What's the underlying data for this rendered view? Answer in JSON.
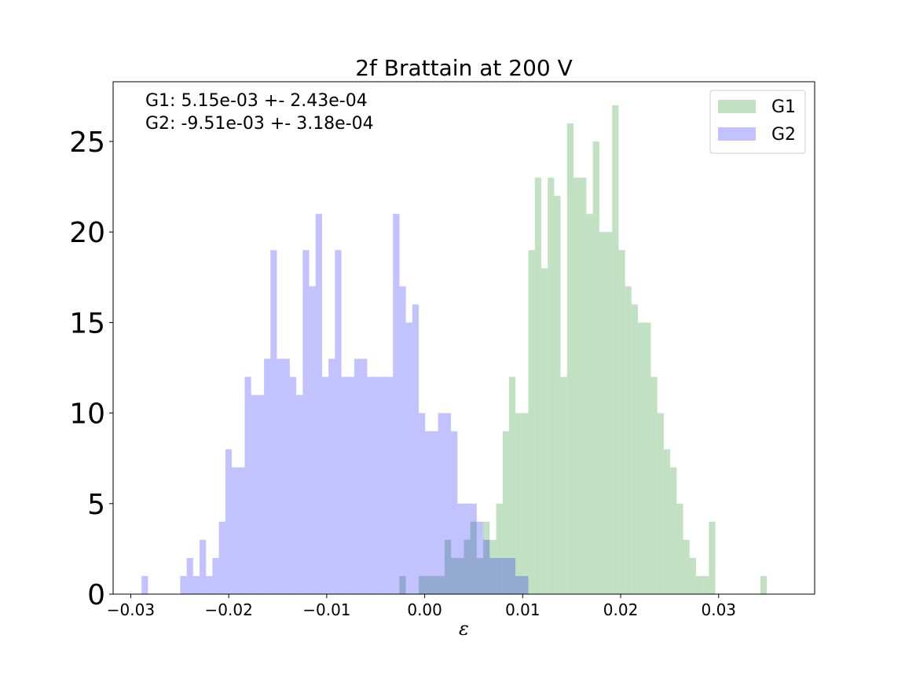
{
  "chart_data": {
    "type": "bar",
    "title": "2f Brattain at 200 V",
    "xlabel": "ε",
    "ylabel": "",
    "xlim": [
      -0.0318,
      0.0398
    ],
    "ylim": [
      0,
      28.3
    ],
    "xticks": [
      -0.03,
      -0.02,
      -0.01,
      0.0,
      0.01,
      0.02,
      0.03
    ],
    "xtick_labels": [
      "−0.03",
      "−0.02",
      "−0.01",
      "0.00",
      "0.01",
      "0.02",
      "0.03"
    ],
    "yticks": [
      0,
      5,
      10,
      15,
      20,
      25
    ],
    "ytick_labels": [
      "0",
      "5",
      "10",
      "15",
      "20",
      "25"
    ],
    "grid": false,
    "legend_position": "top-right",
    "annotations": [
      "G1: 5.15e-03 +- 2.43e-04",
      "G2: -9.51e-03 +- 3.18e-04"
    ],
    "bin_start": -0.0289,
    "bin_width": 0.000658,
    "series": [
      {
        "name": "G1",
        "color": "#008000",
        "alpha": 0.24,
        "values": [
          0,
          0,
          0,
          0,
          0,
          0,
          0,
          0,
          0,
          0,
          0,
          0,
          0,
          0,
          0,
          0,
          0,
          0,
          0,
          0,
          0,
          0,
          0,
          0,
          0,
          0,
          0,
          0,
          0,
          0,
          0,
          0,
          0,
          0,
          0,
          0,
          0,
          0,
          0,
          0,
          1,
          0,
          0,
          1,
          1,
          1,
          1,
          3,
          2,
          2,
          3,
          4,
          2,
          4,
          3,
          5,
          9,
          12,
          10,
          10,
          19,
          23,
          18,
          23,
          22,
          12,
          26,
          23,
          23,
          21,
          25,
          20,
          20,
          27,
          19,
          17,
          16,
          15,
          15,
          12,
          10,
          8,
          7,
          5,
          3,
          2,
          1,
          1,
          4,
          0,
          0,
          0,
          0,
          0,
          0,
          0,
          1,
          0,
          0,
          0,
          0,
          0,
          0,
          0,
          0,
          0,
          0,
          0,
          0,
          0,
          0,
          0,
          0
        ]
      },
      {
        "name": "G2",
        "color": "#0000ff",
        "alpha": 0.24,
        "values": [
          1,
          0,
          0,
          0,
          0,
          0,
          1,
          2,
          1,
          3,
          1,
          2,
          4,
          8,
          7,
          7,
          12,
          11,
          11,
          13,
          19,
          13,
          13,
          12,
          11,
          19,
          17,
          21,
          12,
          13,
          19,
          12,
          12,
          13,
          13,
          12,
          12,
          12,
          12,
          21,
          17,
          15,
          16,
          10,
          9,
          9,
          10,
          10,
          9,
          5,
          5,
          5,
          4,
          3,
          2,
          2,
          2,
          2,
          1,
          1,
          0,
          0,
          0,
          0,
          0,
          0,
          0,
          0,
          0,
          0,
          0,
          0,
          0,
          0,
          0,
          0,
          0,
          0,
          0,
          0,
          0,
          0,
          0,
          0,
          0,
          0,
          0,
          0,
          0,
          0,
          0,
          0,
          0,
          0,
          0,
          0,
          0,
          0,
          0,
          0,
          0,
          0,
          0,
          0,
          0,
          0,
          0,
          0,
          0,
          0,
          0,
          0,
          0
        ]
      }
    ]
  }
}
